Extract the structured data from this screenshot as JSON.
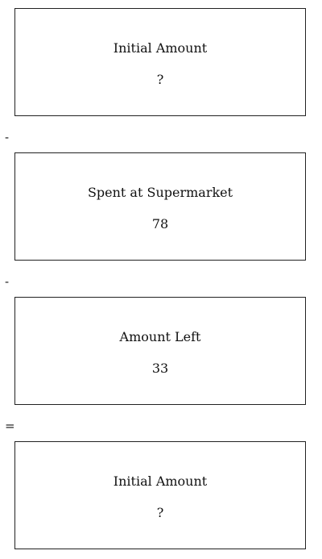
{
  "rows": [
    {
      "label": "Initial Amount",
      "value": "?"
    },
    {
      "operator": "-"
    },
    {
      "label": "Spent at Supermarket",
      "value": "78"
    },
    {
      "operator": "-"
    },
    {
      "label": "Amount Left",
      "value": "33"
    },
    {
      "operator": "="
    },
    {
      "label": "Initial Amount",
      "value": "?"
    }
  ]
}
